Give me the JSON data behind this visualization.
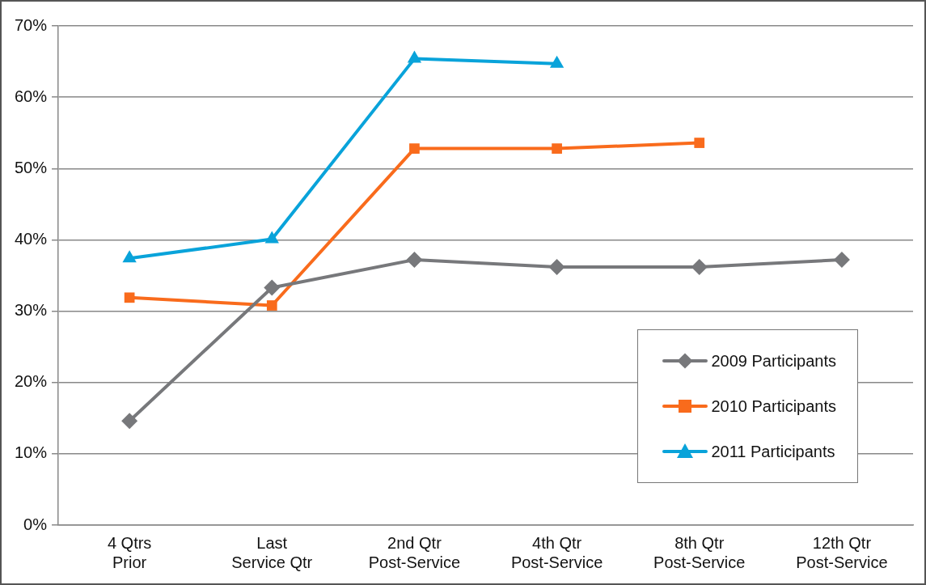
{
  "chart_data": {
    "type": "line",
    "categories": [
      "4 Qtrs\nPrior",
      "Last\nService Qtr",
      "2nd Qtr\nPost-Service",
      "4th Qtr\nPost-Service",
      "8th Qtr\nPost-Service",
      "12th Qtr\nPost-Service"
    ],
    "series": [
      {
        "name": "2009 Participants",
        "color": "#77787b",
        "marker": "diamond",
        "values": [
          14.6,
          33.3,
          37.2,
          36.2,
          36.2,
          37.2
        ]
      },
      {
        "name": "2010 Participants",
        "color": "#f96b1c",
        "marker": "square",
        "values": [
          31.9,
          30.8,
          52.8,
          52.8,
          53.6,
          null
        ]
      },
      {
        "name": "2011 Participants",
        "color": "#09a3da",
        "marker": "triangle",
        "values": [
          37.4,
          40.1,
          65.4,
          64.7,
          null,
          null
        ]
      }
    ],
    "ylim": [
      0,
      70
    ],
    "yticks": [
      {
        "value": 0,
        "label": "0%"
      },
      {
        "value": 10,
        "label": "10%"
      },
      {
        "value": 20,
        "label": "20%"
      },
      {
        "value": 30,
        "label": "30%"
      },
      {
        "value": 40,
        "label": "40%"
      },
      {
        "value": 50,
        "label": "50%"
      },
      {
        "value": 60,
        "label": "60%"
      },
      {
        "value": 70,
        "label": "70%"
      }
    ],
    "grid": "y",
    "legend": "bottom right",
    "line_style": "solid"
  }
}
